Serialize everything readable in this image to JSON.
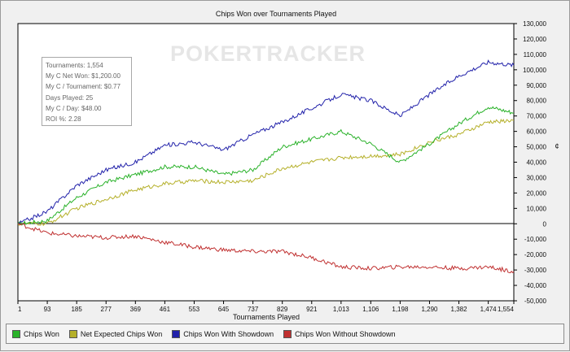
{
  "watermark": "POKERTRACKER",
  "stats_box": [
    "Tournaments: 1,554",
    "My C Net Won: $1,200.00",
    "My C / Tournament: $0.77",
    "Days Played: 25",
    "My C / Day: $48.00",
    "ROI %: 2.28"
  ],
  "legend": [
    {
      "label": "Chips Won",
      "color": "#2ab22a"
    },
    {
      "label": "Net Expected Chips Won",
      "color": "#b5b02a"
    },
    {
      "label": "Chips Won With Showdown",
      "color": "#2222aa"
    },
    {
      "label": "Chips Won Without Showdown",
      "color": "#c03030"
    }
  ],
  "chart_data": {
    "type": "line",
    "title": "Chips Won over Tournaments Played",
    "xlabel": "Tournaments Played",
    "ylabel": "¢",
    "xlim": [
      1,
      1554
    ],
    "ylim": [
      -50000,
      130000
    ],
    "x_ticks": [
      "1",
      "93",
      "185",
      "277",
      "369",
      "461",
      "553",
      "645",
      "737",
      "829",
      "921",
      "1,013",
      "1,106",
      "1,198",
      "1,290",
      "1,382",
      "1,474",
      "1,554"
    ],
    "y_ticks": [
      "130,000",
      "120,000",
      "110,000",
      "100,000",
      "90,000",
      "80,000",
      "70,000",
      "60,000",
      "50,000",
      "40,000",
      "30,000",
      "20,000",
      "10,000",
      "0",
      "-10,000",
      "-20,000",
      "-30,000",
      "-40,000",
      "-50,000"
    ],
    "grid": false,
    "legend_position": "bottom",
    "x": [
      1,
      93,
      185,
      277,
      369,
      461,
      553,
      645,
      737,
      829,
      921,
      1013,
      1106,
      1198,
      1290,
      1382,
      1474,
      1554
    ],
    "series": [
      {
        "name": "Chips Won",
        "color": "#2ab22a",
        "values": [
          0,
          2000,
          17000,
          27000,
          32000,
          37000,
          37000,
          32000,
          35000,
          50000,
          55000,
          60000,
          52000,
          40000,
          52000,
          65000,
          76000,
          72000
        ]
      },
      {
        "name": "Net Expected Chips Won",
        "color": "#b5b02a",
        "values": [
          0,
          0,
          10000,
          16000,
          22000,
          26000,
          28000,
          27000,
          28000,
          36000,
          40000,
          43000,
          44000,
          45000,
          53000,
          58000,
          66000,
          67000
        ]
      },
      {
        "name": "Chips Won With Showdown",
        "color": "#2222aa",
        "values": [
          0,
          8000,
          25000,
          35000,
          40000,
          51000,
          53000,
          48000,
          58000,
          66000,
          75000,
          84000,
          80000,
          70000,
          84000,
          96000,
          105000,
          103000
        ]
      },
      {
        "name": "Chips Won Without Showdown",
        "color": "#c03030",
        "values": [
          0,
          -6000,
          -8000,
          -9000,
          -8000,
          -12000,
          -15000,
          -17000,
          -18000,
          -18000,
          -22000,
          -28000,
          -29000,
          -28000,
          -28000,
          -29000,
          -28000,
          -31000
        ]
      }
    ]
  }
}
